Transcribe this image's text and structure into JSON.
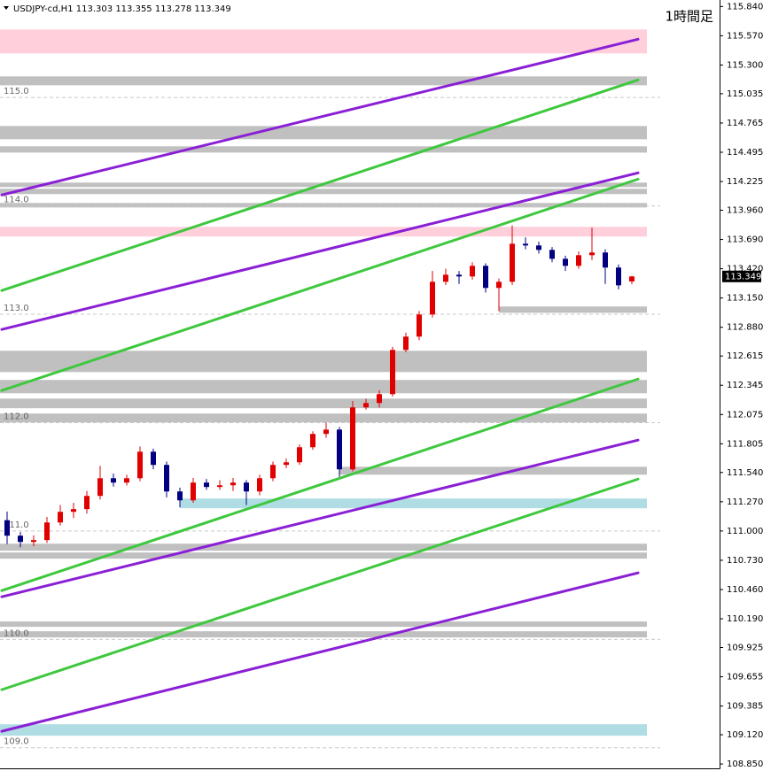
{
  "chart_data": {
    "type": "candlestick",
    "title": "USDJPY-cd,H1",
    "annotation": "1時間足",
    "ylim": [
      108.81,
      115.9
    ],
    "yticks": [
      {
        "value": 115.84,
        "label": "115.840"
      },
      {
        "value": 115.57,
        "label": "115.570"
      },
      {
        "value": 115.3,
        "label": "115.300"
      },
      {
        "value": 115.035,
        "label": "115.035"
      },
      {
        "value": 114.765,
        "label": "114.765"
      },
      {
        "value": 114.495,
        "label": "114.495"
      },
      {
        "value": 114.225,
        "label": "114.225"
      },
      {
        "value": 113.96,
        "label": "113.960"
      },
      {
        "value": 113.69,
        "label": "113.690"
      },
      {
        "value": 113.42,
        "label": "113.420"
      },
      {
        "value": 113.15,
        "label": "113.150"
      },
      {
        "value": 112.88,
        "label": "112.880"
      },
      {
        "value": 112.615,
        "label": "112.615"
      },
      {
        "value": 112.345,
        "label": "112.345"
      },
      {
        "value": 112.075,
        "label": "112.075"
      },
      {
        "value": 111.805,
        "label": "111.805"
      },
      {
        "value": 111.54,
        "label": "111.540"
      },
      {
        "value": 111.27,
        "label": "111.270"
      },
      {
        "value": 111,
        "label": "111.000"
      },
      {
        "value": 110.73,
        "label": "110.730"
      },
      {
        "value": 110.46,
        "label": "110.460"
      },
      {
        "value": 110.19,
        "label": "110.190"
      },
      {
        "value": 109.925,
        "label": "109.925"
      },
      {
        "value": 109.655,
        "label": "109.655"
      },
      {
        "value": 109.385,
        "label": "109.385"
      },
      {
        "value": 109.12,
        "label": "109.120"
      },
      {
        "value": 108.85,
        "label": "108.850"
      }
    ],
    "levels": [
      {
        "value": 115,
        "label": "115.0"
      },
      {
        "value": 114,
        "label": "114.0"
      },
      {
        "value": 113,
        "label": "113.0"
      },
      {
        "value": 112,
        "label": "112.0"
      },
      {
        "value": 111,
        "label": "111.0"
      },
      {
        "value": 110,
        "label": "110.0"
      },
      {
        "value": 109,
        "label": "109.0"
      }
    ],
    "up_color": "#e00000",
    "down_color": "#000080",
    "open": [
      111.1,
      110.957,
      110.899,
      110.916,
      111.079,
      111.177,
      111.202,
      111.324,
      111.487,
      111.447,
      111.487,
      111.732,
      111.61,
      111.365,
      111.283,
      111.447,
      111.406,
      111.422,
      111.447,
      111.365,
      111.487,
      111.61,
      111.634,
      111.773,
      111.896,
      111.936,
      111.569,
      112.141,
      112.181,
      112.263,
      112.671,
      112.794,
      112.998,
      113.3,
      113.365,
      113.349,
      113.447,
      113.243,
      113.3,
      113.651,
      113.635,
      113.594,
      113.512,
      113.447,
      113.545,
      113.57,
      113.431,
      113.303
    ],
    "high": [
      111.18,
      110.99,
      110.96,
      111.13,
      111.24,
      111.26,
      111.37,
      111.6,
      111.53,
      111.52,
      111.78,
      111.76,
      111.64,
      111.4,
      111.49,
      111.48,
      111.47,
      111.49,
      111.47,
      111.52,
      111.64,
      111.67,
      111.8,
      111.92,
      112.0,
      111.96,
      112.2,
      112.22,
      112.3,
      112.7,
      112.83,
      113.03,
      113.4,
      113.42,
      113.4,
      113.48,
      113.47,
      113.33,
      113.82,
      113.71,
      113.67,
      113.62,
      113.54,
      113.58,
      113.8,
      113.6,
      113.46,
      113.355
    ],
    "low": [
      110.88,
      110.85,
      110.86,
      110.89,
      111.05,
      111.12,
      111.16,
      111.29,
      111.41,
      111.42,
      111.46,
      111.57,
      111.31,
      111.22,
      111.26,
      111.38,
      111.38,
      111.37,
      111.24,
      111.33,
      111.46,
      111.58,
      111.61,
      111.75,
      111.86,
      111.5,
      111.55,
      112.12,
      112.14,
      112.24,
      112.65,
      112.76,
      112.97,
      113.27,
      113.28,
      113.32,
      113.2,
      113.03,
      113.27,
      113.6,
      113.56,
      113.48,
      113.4,
      113.42,
      113.5,
      113.28,
      113.23,
      113.278
    ],
    "close": [
      110.957,
      110.899,
      110.916,
      111.079,
      111.177,
      111.202,
      111.324,
      111.487,
      111.447,
      111.487,
      111.732,
      111.61,
      111.365,
      111.283,
      111.447,
      111.406,
      111.422,
      111.447,
      111.365,
      111.487,
      111.61,
      111.634,
      111.773,
      111.896,
      111.936,
      111.569,
      112.141,
      112.181,
      112.263,
      112.671,
      112.794,
      112.998,
      113.3,
      113.365,
      113.349,
      113.447,
      113.243,
      113.3,
      113.651,
      113.635,
      113.594,
      113.512,
      113.447,
      113.545,
      113.57,
      113.431,
      113.267,
      113.349
    ],
    "zones": [
      {
        "low": 115.407,
        "high": 115.628,
        "color": "#ffd0dc"
      },
      {
        "low": 115.113,
        "high": 115.195,
        "color": "#c0c0c0"
      },
      {
        "low": 114.615,
        "high": 114.737,
        "color": "#c0c0c0"
      },
      {
        "low": 114.492,
        "high": 114.55,
        "color": "#c0c0c0"
      },
      {
        "low": 114.174,
        "high": 114.215,
        "color": "#c0c0c0"
      },
      {
        "low": 114.109,
        "high": 114.158,
        "color": "#c0c0c0"
      },
      {
        "low": 113.986,
        "high": 114.027,
        "color": "#c0c0c0"
      },
      {
        "low": 113.717,
        "high": 113.807,
        "color": "#ffd0dc"
      },
      {
        "low": 113.014,
        "high": 113.072,
        "color": "#c0c0c0",
        "anchor": 37
      },
      {
        "low": 112.467,
        "high": 112.663,
        "color": "#c0c0c0"
      },
      {
        "low": 112.271,
        "high": 112.394,
        "color": "#c0c0c0"
      },
      {
        "low": 112.133,
        "high": 112.222,
        "color": "#c0c0c0"
      },
      {
        "low": 112.002,
        "high": 112.084,
        "color": "#c0c0c0"
      },
      {
        "low": 111.52,
        "high": 111.593,
        "color": "#c0c0c0",
        "anchor": 25
      },
      {
        "low": 111.21,
        "high": 111.3,
        "color": "#b0dde4",
        "anchor": 13
      },
      {
        "low": 110.818,
        "high": 110.883,
        "color": "#c0c0c0"
      },
      {
        "low": 110.745,
        "high": 110.802,
        "color": "#c0c0c0"
      },
      {
        "low": 110.116,
        "high": 110.165,
        "color": "#c0c0c0"
      },
      {
        "low": 110.018,
        "high": 110.075,
        "color": "#c0c0c0"
      },
      {
        "low": 109.111,
        "high": 109.217,
        "color": "#b0dde4"
      }
    ],
    "trendlines": [
      {
        "start": 114.101,
        "end": 115.538,
        "color": "#8a1fd6"
      },
      {
        "start": 113.219,
        "end": 115.162,
        "color": "#3ec83e"
      },
      {
        "start": 112.86,
        "end": 114.305,
        "color": "#8a1fd6"
      },
      {
        "start": 112.296,
        "end": 114.247,
        "color": "#3ec83e"
      },
      {
        "start": 110.45,
        "end": 112.402,
        "color": "#3ec83e"
      },
      {
        "start": 110.393,
        "end": 111.839,
        "color": "#8a1fd6"
      },
      {
        "start": 109.536,
        "end": 111.479,
        "color": "#3ec83e"
      },
      {
        "start": 109.152,
        "end": 110.614,
        "color": "#8a1fd6"
      }
    ]
  }
}
